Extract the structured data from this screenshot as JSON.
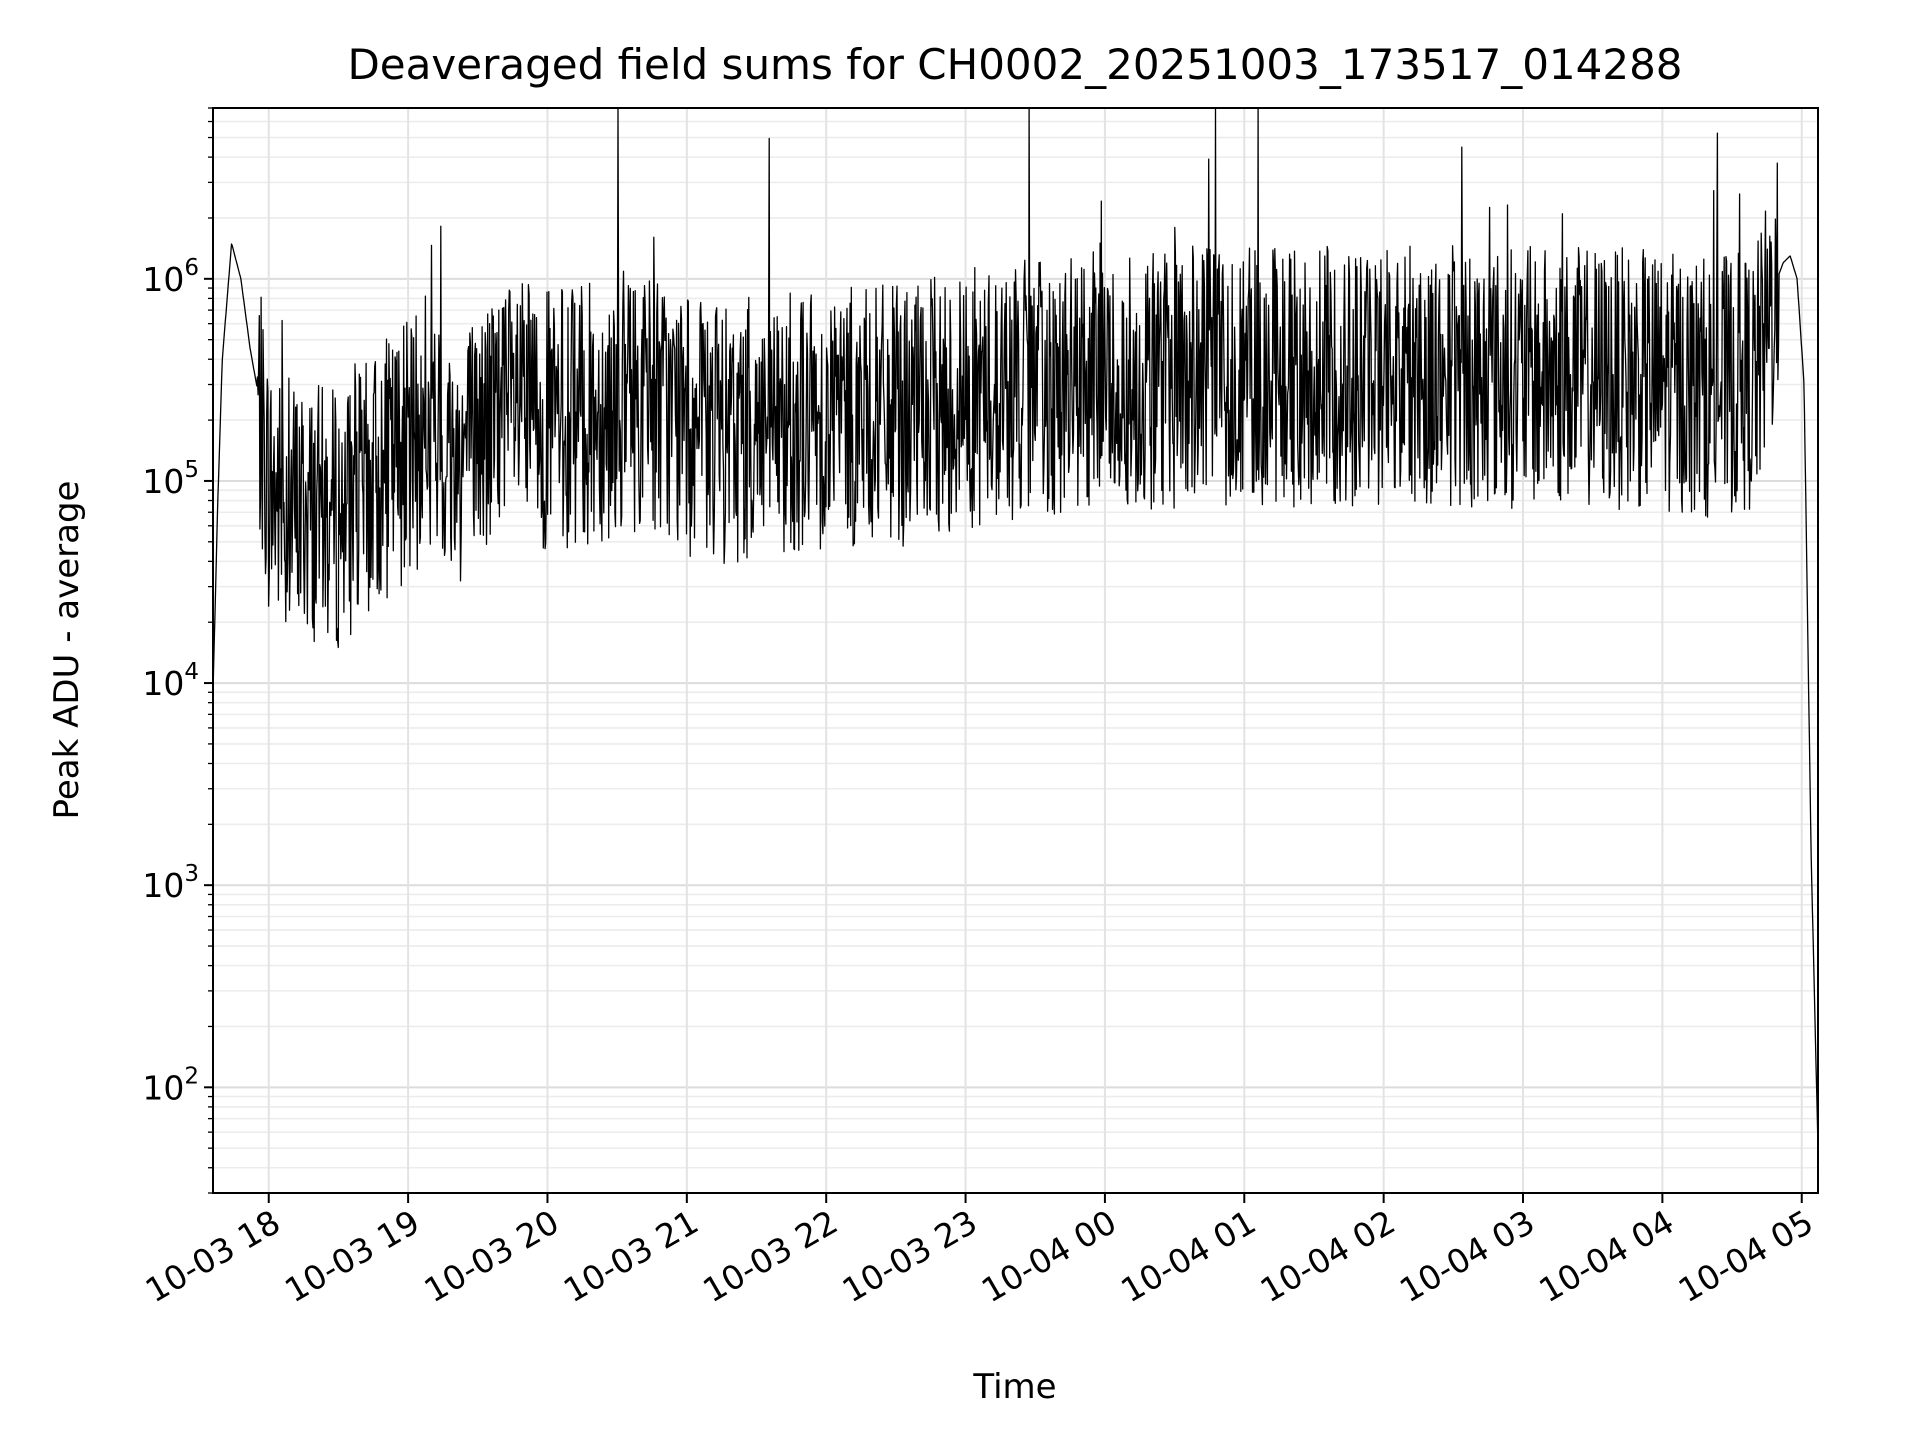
{
  "chart_data": {
    "type": "line",
    "title": "Deaveraged field sums for CH0002_20251003_173517_014288",
    "xlabel": "Time",
    "ylabel": "Peak ADU - average",
    "y_scale": "log",
    "ylim": [
      30,
      7000000
    ],
    "xlim": [
      "2025-10-03 17:36",
      "2025-10-04 05:07"
    ],
    "grid": true,
    "line_color": "#000000",
    "x_tick_labels": [
      "10-03 18",
      "10-03 19",
      "10-03 20",
      "10-03 21",
      "10-03 22",
      "10-03 23",
      "10-04 00",
      "10-04 01",
      "10-04 02",
      "10-04 03",
      "10-04 04",
      "10-04 05"
    ],
    "y_ticks": [
      {
        "value": 100,
        "base": "10",
        "exp": "2"
      },
      {
        "value": 1000,
        "base": "10",
        "exp": "3"
      },
      {
        "value": 10000,
        "base": "10",
        "exp": "4"
      },
      {
        "value": 100000,
        "base": "10",
        "exp": "5"
      },
      {
        "value": 1000000,
        "base": "10",
        "exp": "6"
      }
    ],
    "series": [
      {
        "x": [
          "2025-10-03 17:36",
          "2025-10-03 17:38",
          "2025-10-03 17:40",
          "2025-10-03 17:44",
          "2025-10-03 17:48",
          "2025-10-03 17:52",
          "2025-10-03 17:56",
          "2025-10-03 18:00",
          "2025-10-03 18:05",
          "2025-10-03 18:10",
          "2025-10-03 18:20",
          "2025-10-03 18:30",
          "2025-10-03 18:40",
          "2025-10-03 18:50",
          "2025-10-03 19:00",
          "2025-10-03 19:10",
          "2025-10-03 19:20",
          "2025-10-03 19:30",
          "2025-10-03 19:45",
          "2025-10-03 20:00",
          "2025-10-03 20:15",
          "2025-10-03 20:30",
          "2025-10-03 20:45",
          "2025-10-03 21:00",
          "2025-10-03 21:15",
          "2025-10-03 21:30",
          "2025-10-03 21:45",
          "2025-10-03 22:00",
          "2025-10-03 22:20",
          "2025-10-03 22:40",
          "2025-10-03 23:00",
          "2025-10-03 23:30",
          "2025-10-04 00:00",
          "2025-10-04 00:30",
          "2025-10-04 01:00",
          "2025-10-04 01:30",
          "2025-10-04 02:00",
          "2025-10-04 02:30",
          "2025-10-04 03:00",
          "2025-10-04 03:30",
          "2025-10-04 04:00",
          "2025-10-04 04:20",
          "2025-10-04 04:40",
          "2025-10-04 04:48",
          "2025-10-04 04:52",
          "2025-10-04 04:55",
          "2025-10-04 04:58",
          "2025-10-04 05:01",
          "2025-10-04 05:04",
          "2025-10-04 05:07"
        ],
        "y": [
          9000,
          75000,
          400000,
          1500000,
          1000000,
          450000,
          250000,
          110000,
          90000,
          85000,
          80000,
          75000,
          95000,
          130000,
          170000,
          180000,
          150000,
          200000,
          260000,
          230000,
          240000,
          280000,
          300000,
          220000,
          180000,
          220000,
          230000,
          240000,
          240000,
          250000,
          300000,
          330000,
          360000,
          380000,
          400000,
          380000,
          390000,
          380000,
          380000,
          380000,
          360000,
          340000,
          360000,
          900000,
          1200000,
          1300000,
          1000000,
          300000,
          1500,
          50
        ]
      }
    ]
  }
}
